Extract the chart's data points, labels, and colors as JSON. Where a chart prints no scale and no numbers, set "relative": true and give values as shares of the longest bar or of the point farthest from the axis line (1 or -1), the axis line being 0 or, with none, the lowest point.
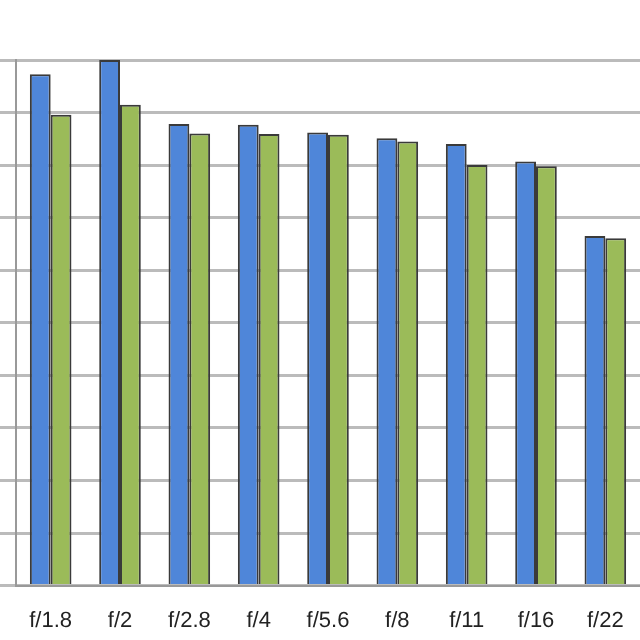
{
  "chart_data": {
    "type": "bar",
    "relative": true,
    "grid": "y",
    "legend": false,
    "categories": [
      "f/1.8",
      "f/2",
      "f/2.8",
      "f/4",
      "f/5.6",
      "f/8",
      "f/11",
      "f/16",
      "f/22"
    ],
    "series": [
      {
        "color": "#4f86d9",
        "values": [
          0.973,
          1,
          0.878,
          0.877,
          0.862,
          0.851,
          0.84,
          0.807,
          0.665
        ]
      },
      {
        "color": "#9bbb59",
        "values": [
          0.896,
          0.915,
          0.86,
          0.859,
          0.858,
          0.845,
          0.8,
          0.798,
          0.661
        ]
      }
    ]
  }
}
